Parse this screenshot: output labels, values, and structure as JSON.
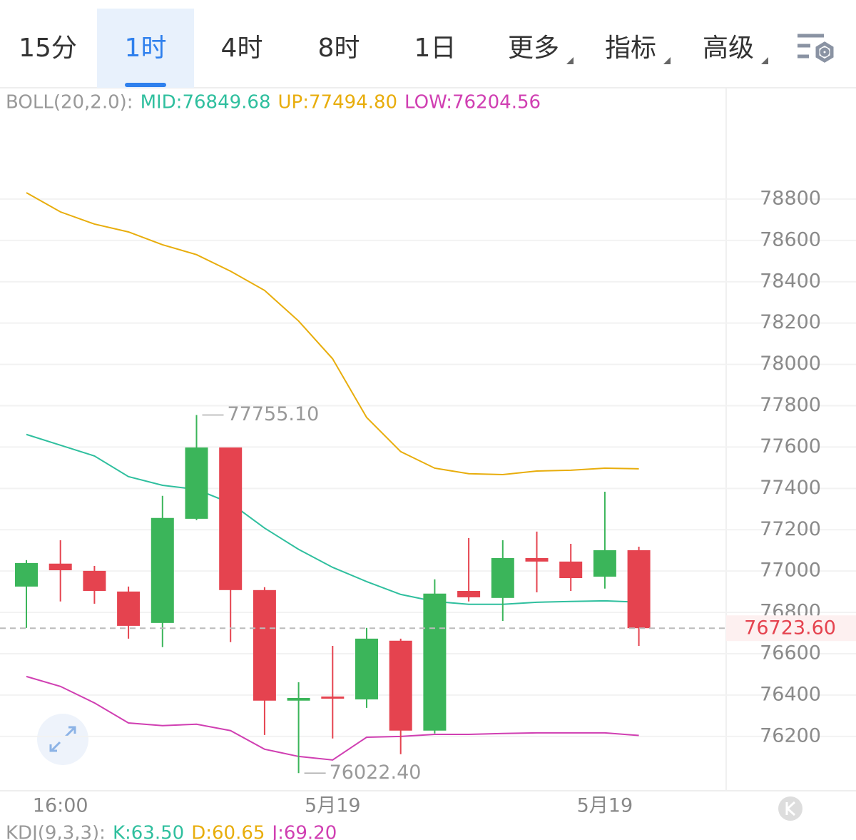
{
  "toolbar": {
    "tabs": [
      {
        "label": "15分"
      },
      {
        "label": "1时"
      },
      {
        "label": "4时"
      },
      {
        "label": "8时"
      },
      {
        "label": "1日"
      },
      {
        "label": "更多",
        "dropdown": true
      },
      {
        "label": "指标",
        "dropdown": true
      },
      {
        "label": "高级",
        "dropdown": true
      }
    ],
    "active": 1
  },
  "chart_data": {
    "type": "candlestick",
    "indicator": "BOLL(20,2.0):",
    "categories": [
      null,
      "16:00",
      null,
      null,
      null,
      null,
      null,
      null,
      null,
      "5月19",
      null,
      null,
      null,
      null,
      null,
      null,
      null,
      "5月19",
      null
    ],
    "open": [
      76925,
      77036,
      77001,
      76901,
      76749,
      77253,
      77598,
      76908,
      76373,
      76393,
      76379,
      76663,
      76228,
      76904,
      76870,
      77063,
      77046,
      76973,
      77101
    ],
    "high": [
      77053,
      77149,
      77025,
      76925,
      77364,
      77755.1,
      77598,
      76922,
      76462,
      76638,
      76725,
      76673,
      76960,
      77160,
      77149,
      77191,
      77132,
      77384,
      77118
    ],
    "low": [
      76725,
      76853,
      76842,
      76673,
      76632,
      77246,
      76656,
      76207,
      76022.4,
      76190,
      76338,
      76114,
      76214,
      76853,
      76759,
      76897,
      76904,
      76915,
      76638
    ],
    "close": [
      77039,
      77004,
      76904,
      76735,
      77257,
      77598,
      76908,
      76373,
      76386,
      76383,
      76673,
      76228,
      76891,
      76873,
      77063,
      77046,
      76966,
      77101,
      76723.6
    ],
    "up_color": "#3bb55a",
    "down_color": "#e5434f",
    "series": [
      {
        "name": "MID:76849.68",
        "color": "#2fbf9e",
        "values": [
          77661,
          77609,
          77557,
          77457,
          77415,
          77395,
          77329,
          77208,
          77105,
          77018,
          76949,
          76887,
          76853,
          76839,
          76839,
          76849,
          76853,
          76856,
          76849.68
        ]
      },
      {
        "name": "UP:77494.80",
        "color": "#e8ad0c",
        "values": [
          78831,
          78738,
          78679,
          78641,
          78579,
          78531,
          78451,
          78358,
          78210,
          78027,
          77743,
          77578,
          77498,
          77471,
          77467,
          77484,
          77488,
          77498,
          77494.8
        ]
      },
      {
        "name": "LOW:76204.56",
        "color": "#d03fb2",
        "values": [
          76490,
          76442,
          76362,
          76265,
          76252,
          76259,
          76228,
          76138,
          76103,
          76086,
          76196,
          76200,
          76210,
          76210,
          76214,
          76217,
          76217,
          76217,
          76204.56
        ]
      }
    ],
    "ylim": [
      75937,
      79335
    ],
    "yticks": [
      76200,
      76400,
      76600,
      76800,
      77000,
      77200,
      77400,
      77600,
      77800,
      78000,
      78200,
      78400,
      78600,
      78800
    ],
    "grid": true,
    "high_label": {
      "value": 77755.1,
      "label": "77755.10"
    },
    "low_label": {
      "value": 76022.4,
      "label": "76022.40"
    },
    "last_price": {
      "value": 76723.6,
      "label": "76723.60"
    }
  },
  "kdj": {
    "label": "KDJ(9,3,3):",
    "items": [
      {
        "text": "K:63.50",
        "color": "#2fbf9e"
      },
      {
        "text": "D:60.65",
        "color": "#e8ad0c"
      },
      {
        "text": "J:69.20",
        "color": "#d03fb2"
      }
    ]
  }
}
